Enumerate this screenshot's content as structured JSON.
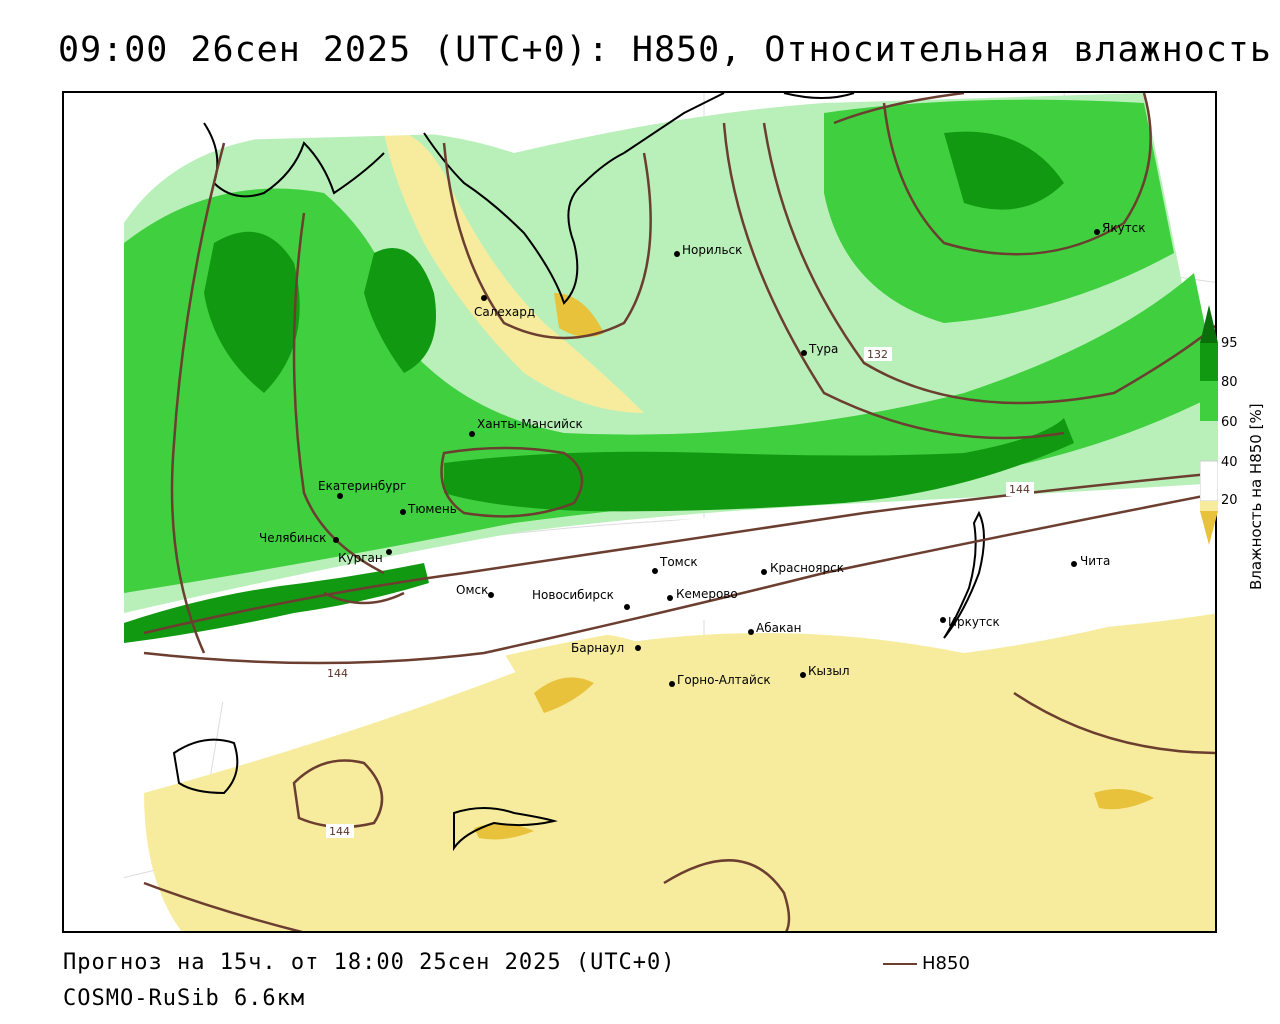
{
  "title": "09:00 26сен 2025 (UTC+0): H850, Относительная влажность",
  "footer": {
    "forecast": "Прогноз на 15ч. от 18:00 25сен 2025 (UTC+0)",
    "model": "COSMO-RuSib 6.6км"
  },
  "legend": {
    "contour_label": "H850",
    "contour_color": "#6b3e30"
  },
  "colorbar": {
    "title": "Влажность на H850 [%]",
    "ticks": [
      "95",
      "80",
      "60",
      "40",
      "20"
    ],
    "colors": {
      "very_dry": "#e8c23a",
      "dry": "#f7ec9e",
      "neutral": "#ffffff",
      "moist": "#b9f0b9",
      "wet": "#3fcf3f",
      "very_wet": "#119a11",
      "saturated": "#0a6e0a"
    }
  },
  "cities": [
    {
      "name": "Якутск"
    },
    {
      "name": "Норильск"
    },
    {
      "name": "Салехард"
    },
    {
      "name": "Тура"
    },
    {
      "name": "Ханты-Мансийск"
    },
    {
      "name": "Екатеринбург"
    },
    {
      "name": "Тюмень"
    },
    {
      "name": "Челябинск"
    },
    {
      "name": "Курган"
    },
    {
      "name": "Омск"
    },
    {
      "name": "Новосибирск"
    },
    {
      "name": "Томск"
    },
    {
      "name": "Кемерово"
    },
    {
      "name": "Красноярск"
    },
    {
      "name": "Барнаул"
    },
    {
      "name": "Абакан"
    },
    {
      "name": "Горно-Алтайск"
    },
    {
      "name": "Кызыл"
    },
    {
      "name": "Иркутск"
    },
    {
      "name": "Чита"
    }
  ],
  "contour_labels": [
    "132",
    "144",
    "144",
    "144"
  ]
}
